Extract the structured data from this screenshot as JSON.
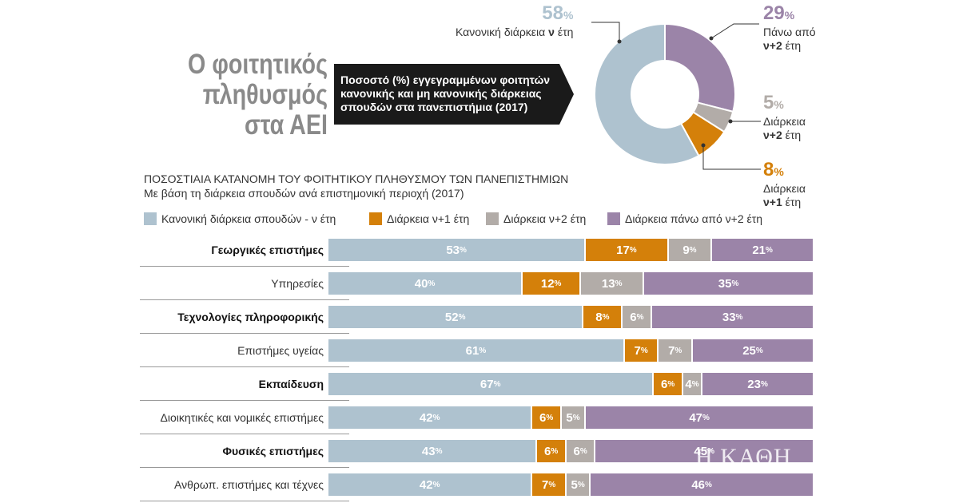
{
  "title_lines": [
    "Ο φοιτητικός",
    "πληθυσμός",
    "στα ΑΕΙ"
  ],
  "callout_text": "Ποσοστό (%) εγγεγραμμένων φοιτητών κανονικής και μη κανονικής διάρκειας σπουδών στα πανεπιστήμια (2017)",
  "donut": {
    "slices": [
      {
        "pct": "58",
        "value": 58,
        "color": "#aec2cf",
        "label": "Κανονική διάρκεια ",
        "label_bold": "ν",
        "label_after": " έτη"
      },
      {
        "pct": "8",
        "value": 8,
        "color": "#d4800a",
        "label": "Διάρκεια",
        "label_bold": "ν+1",
        "label_after": " έτη"
      },
      {
        "pct": "5",
        "value": 5,
        "color": "#b2aca8",
        "label": "Διάρκεια",
        "label_bold": "ν+2",
        "label_after": " έτη"
      },
      {
        "pct": "29",
        "value": 29,
        "color": "#9b84a8",
        "label": "Πάνω από",
        "label_bold": "ν+2",
        "label_after": " έτη"
      }
    ]
  },
  "subtitle_lines": [
    "ΠΟΣΟΣΤΙΑΙΑ ΚΑΤΑΝΟΜΗ ΤΟΥ ΦΟΙΤΗΤΙΚΟΥ ΠΛΗΘΥΣΜΟΥ ΤΩΝ ΠΑΝΕΠΙΣΤΗΜΙΩΝ",
    "Με βάση τη διάρκεια σπουδών ανά επιστημονική περιοχή (2017)"
  ],
  "percent_sign": "%",
  "watermark": "Η ΚΑΘΗ",
  "chart_data": {
    "type": "bar",
    "stacked": true,
    "orientation": "horizontal",
    "categories": [
      "Γεωργικές επιστήμες",
      "Υπηρεσίες",
      "Τεχνολογίες πληροφορικής",
      "Επιστήμες υγείας",
      "Εκπαίδευση",
      "Διοικητικές και νομικές επιστήμες",
      "Φυσικές επιστήμες",
      "Ανθρωπ. επιστήμες και τέχνες"
    ],
    "bold_categories": [
      true,
      false,
      true,
      false,
      true,
      false,
      true,
      false
    ],
    "series": [
      {
        "name": "Κανονική διάρκεια σπουδών - ν έτη",
        "color": "#aec2cf",
        "values": [
          53,
          40,
          52,
          61,
          67,
          42,
          43,
          42
        ]
      },
      {
        "name": "Διάρκεια ν+1 έτη",
        "color": "#d4800a",
        "values": [
          17,
          12,
          8,
          7,
          6,
          6,
          6,
          7
        ]
      },
      {
        "name": "Διάρκεια ν+2 έτη",
        "color": "#b2aca8",
        "values": [
          9,
          13,
          6,
          7,
          4,
          5,
          6,
          5
        ]
      },
      {
        "name": "Διάρκεια πάνω από ν+2 έτη",
        "color": "#9b84a8",
        "values": [
          21,
          35,
          33,
          25,
          23,
          47,
          45,
          46
        ]
      }
    ],
    "xlim": [
      0,
      100
    ],
    "legend_position": "top-left"
  }
}
